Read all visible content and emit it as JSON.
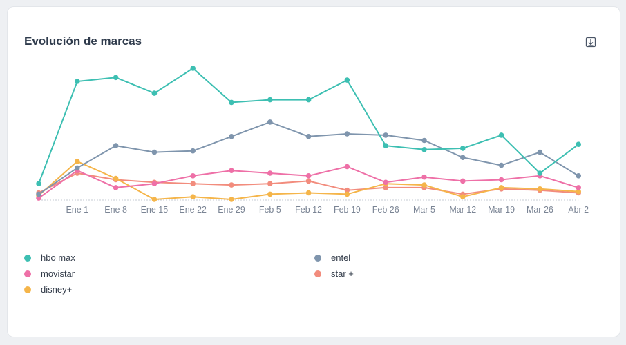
{
  "card": {
    "title": "Evolución de marcas"
  },
  "chart_data": {
    "type": "line",
    "x": [
      "",
      "Ene 1",
      "Ene 8",
      "Ene 15",
      "Ene 22",
      "Ene 29",
      "Feb 5",
      "Feb 12",
      "Feb 19",
      "Feb 26",
      "Mar 5",
      "Mar 12",
      "Mar 19",
      "Mar 26",
      "Abr 2"
    ],
    "ylim": [
      0,
      100
    ],
    "grid": false,
    "legend_position": "bottom",
    "series": [
      {
        "name": "hbo max",
        "color": "#3dbfb2",
        "values": [
          12,
          90,
          93,
          81,
          100,
          74,
          76,
          76,
          91,
          41,
          38,
          39,
          49,
          20,
          42
        ]
      },
      {
        "name": "entel",
        "color": "#7f95ad",
        "values": [
          4,
          24,
          41,
          36,
          37,
          48,
          59,
          48,
          50,
          49,
          45,
          32,
          26,
          36,
          18
        ]
      },
      {
        "name": "movistar",
        "color": "#ee70a7",
        "values": [
          1,
          22,
          9,
          12,
          18,
          22,
          20,
          18,
          25,
          13,
          17,
          14,
          15,
          18,
          9
        ]
      },
      {
        "name": "star +",
        "color": "#f28c7d",
        "values": [
          5,
          20,
          15,
          13,
          12,
          11,
          12,
          14,
          7,
          9,
          9,
          4,
          8,
          7,
          5
        ]
      },
      {
        "name": "disney+",
        "color": "#f5b54a",
        "values": [
          3,
          29,
          16,
          0,
          2,
          0,
          4,
          5,
          4,
          12,
          11,
          2,
          9,
          8,
          6
        ]
      }
    ]
  }
}
